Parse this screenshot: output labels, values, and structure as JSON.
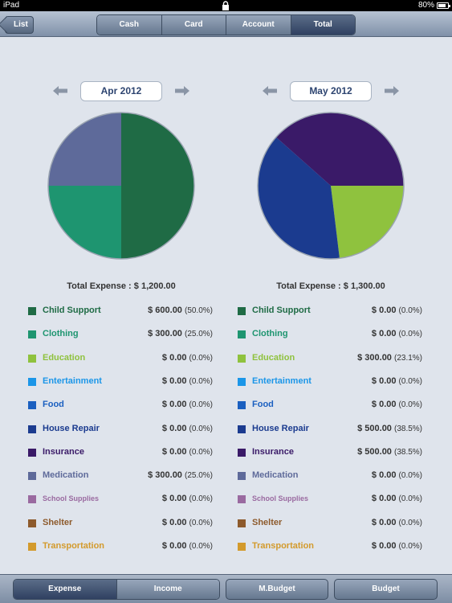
{
  "status_bar": {
    "carrier": "iPad",
    "battery": "80%"
  },
  "nav": {
    "back_label": "List",
    "segments": [
      "Cash",
      "Card",
      "Account",
      "Total"
    ],
    "active_segment": "Total"
  },
  "charts": [
    {
      "month": "Apr 2012",
      "total_label": "Total Expense : $ 1,200.00",
      "items": [
        {
          "label": "Child Support",
          "amount": "$ 600.00",
          "pct": "(50.0%)",
          "color": "#1f6b45"
        },
        {
          "label": "Clothing",
          "amount": "$ 300.00",
          "pct": "(25.0%)",
          "color": "#1e9570"
        },
        {
          "label": "Education",
          "amount": "$ 0.00",
          "pct": "(0.0%)",
          "color": "#8fc23e"
        },
        {
          "label": "Entertainment",
          "amount": "$ 0.00",
          "pct": "(0.0%)",
          "color": "#1b96e8"
        },
        {
          "label": "Food",
          "amount": "$ 0.00",
          "pct": "(0.0%)",
          "color": "#1a5fc0"
        },
        {
          "label": "House Repair",
          "amount": "$ 0.00",
          "pct": "(0.0%)",
          "color": "#1b3b8f"
        },
        {
          "label": "Insurance",
          "amount": "$ 0.00",
          "pct": "(0.0%)",
          "color": "#3a1a68"
        },
        {
          "label": "Medication",
          "amount": "$ 300.00",
          "pct": "(25.0%)",
          "color": "#5e6a9a"
        },
        {
          "label": "School Supplies",
          "amount": "$ 0.00",
          "pct": "(0.0%)",
          "color": "#9a6aa0"
        },
        {
          "label": "Shelter",
          "amount": "$ 0.00",
          "pct": "(0.0%)",
          "color": "#8d5a2c"
        },
        {
          "label": "Transportation",
          "amount": "$ 0.00",
          "pct": "(0.0%)",
          "color": "#d39a2c"
        }
      ]
    },
    {
      "month": "May 2012",
      "total_label": "Total Expense : $ 1,300.00",
      "items": [
        {
          "label": "Child Support",
          "amount": "$ 0.00",
          "pct": "(0.0%)",
          "color": "#1f6b45"
        },
        {
          "label": "Clothing",
          "amount": "$ 0.00",
          "pct": "(0.0%)",
          "color": "#1e9570"
        },
        {
          "label": "Education",
          "amount": "$ 300.00",
          "pct": "(23.1%)",
          "color": "#8fc23e"
        },
        {
          "label": "Entertainment",
          "amount": "$ 0.00",
          "pct": "(0.0%)",
          "color": "#1b96e8"
        },
        {
          "label": "Food",
          "amount": "$ 0.00",
          "pct": "(0.0%)",
          "color": "#1a5fc0"
        },
        {
          "label": "House Repair",
          "amount": "$ 500.00",
          "pct": "(38.5%)",
          "color": "#1b3b8f"
        },
        {
          "label": "Insurance",
          "amount": "$ 500.00",
          "pct": "(38.5%)",
          "color": "#3a1a68"
        },
        {
          "label": "Medication",
          "amount": "$ 0.00",
          "pct": "(0.0%)",
          "color": "#5e6a9a"
        },
        {
          "label": "School Supplies",
          "amount": "$ 0.00",
          "pct": "(0.0%)",
          "color": "#9a6aa0"
        },
        {
          "label": "Shelter",
          "amount": "$ 0.00",
          "pct": "(0.0%)",
          "color": "#8d5a2c"
        },
        {
          "label": "Transportation",
          "amount": "$ 0.00",
          "pct": "(0.0%)",
          "color": "#d39a2c"
        }
      ]
    }
  ],
  "chart_data": [
    {
      "type": "pie",
      "title": "Apr 2012",
      "categories": [
        "Child Support",
        "Clothing",
        "Medication"
      ],
      "values": [
        600,
        300,
        300
      ],
      "colors": [
        "#1f6b45",
        "#1e9570",
        "#5e6a9a"
      ]
    },
    {
      "type": "pie",
      "title": "May 2012",
      "categories": [
        "Education",
        "House Repair",
        "Insurance"
      ],
      "values": [
        300,
        500,
        500
      ],
      "colors": [
        "#8fc23e",
        "#1b3b8f",
        "#3a1a68"
      ]
    }
  ],
  "tabbar": {
    "tabs": [
      "Expense",
      "Income",
      "M.Budget",
      "Budget"
    ],
    "active_tab": "Expense"
  }
}
